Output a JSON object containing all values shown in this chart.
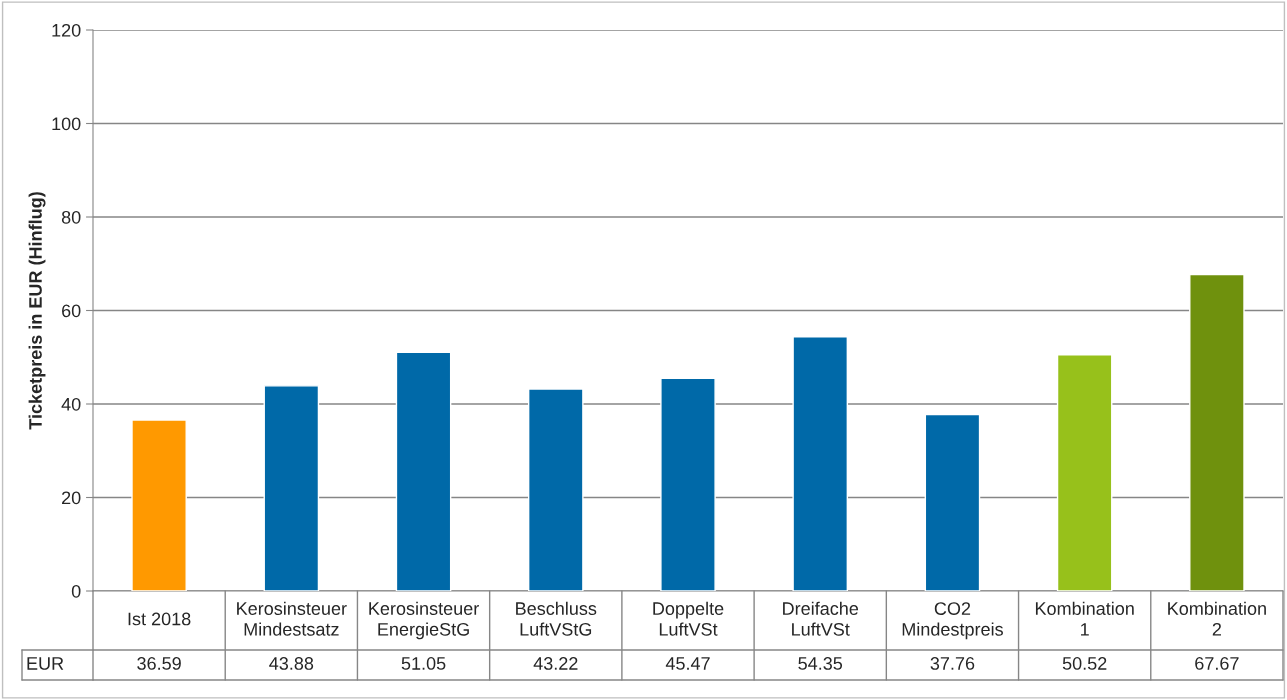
{
  "chart_data": {
    "type": "bar",
    "ylabel": "Ticketpreis in EUR (Hinflug)",
    "categories": [
      "Ist 2018",
      "Kerosinsteuer\nMindestsatz",
      "Kerosinsteuer\nEnergieStG",
      "Beschluss\nLuftVStG",
      "Doppelte\nLuftVSt",
      "Dreifache\nLuftVSt",
      "CO2\nMindestpreis",
      "Kombination\n1",
      "Kombination\n2"
    ],
    "series": [
      {
        "name": "EUR",
        "colors": [
          "#ff9900",
          "#0069a8",
          "#0069a8",
          "#0069a8",
          "#0069a8",
          "#0069a8",
          "#0069a8",
          "#97c11b",
          "#6f910d"
        ],
        "values": [
          36.59,
          43.88,
          51.05,
          43.22,
          45.47,
          54.35,
          37.76,
          50.52,
          67.67
        ]
      }
    ],
    "ylim": [
      0,
      120
    ],
    "yticks": [
      0,
      20,
      40,
      60,
      80,
      100,
      120
    ],
    "grid": "y",
    "data_labels": true,
    "legend": false
  }
}
